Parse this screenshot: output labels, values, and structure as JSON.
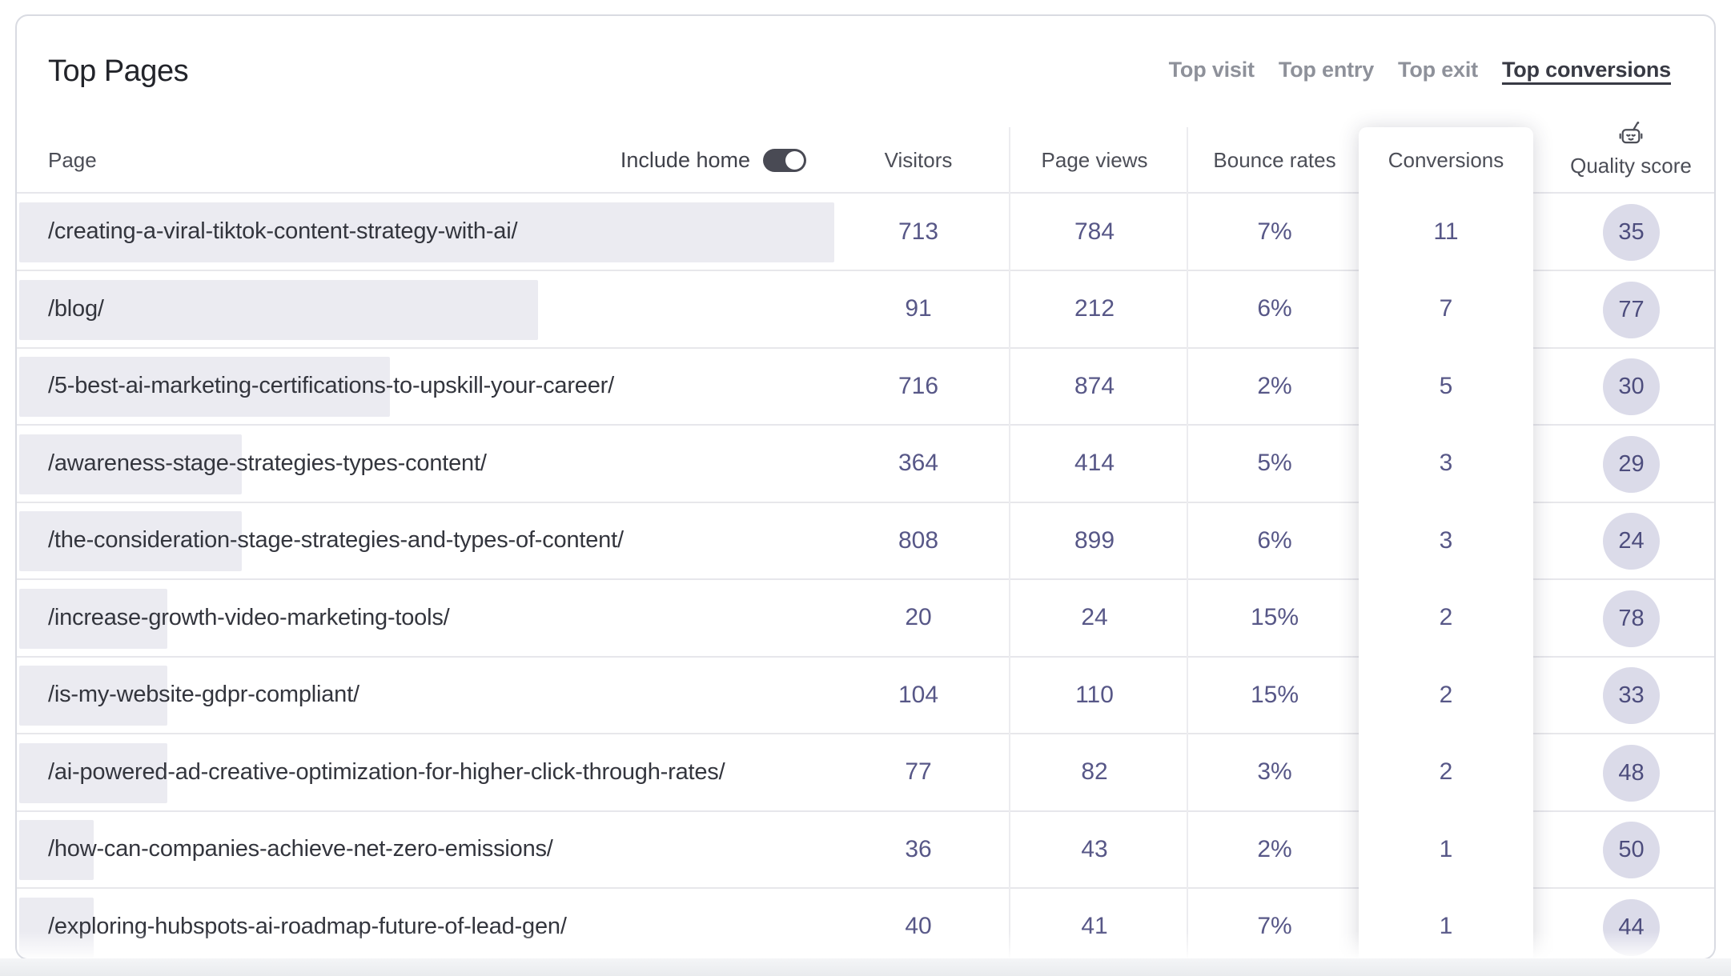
{
  "card": {
    "title": "Top Pages"
  },
  "tabs": [
    {
      "label": "Top visit",
      "active": false
    },
    {
      "label": "Top entry",
      "active": false
    },
    {
      "label": "Top exit",
      "active": false
    },
    {
      "label": "Top conversions",
      "active": true
    }
  ],
  "controls": {
    "include_home_label": "Include home",
    "include_home_state": "on"
  },
  "icons": {
    "quality_score": "robot-icon",
    "toggle": "toggle-on-icon"
  },
  "colors": {
    "accent_number": "#575787",
    "badge_bg": "#dbdbe9",
    "bar_fill": "#ebebf1",
    "toggle_on": "#494a54",
    "card_border": "#d9dbe2"
  },
  "table": {
    "columns": {
      "page": "Page",
      "visitors": "Visitors",
      "page_views": "Page views",
      "bounce_rates": "Bounce rates",
      "conversions": "Conversions",
      "quality_score": "Quality score"
    },
    "rows": [
      {
        "page": "/creating-a-viral-tiktok-content-strategy-with-ai/",
        "visitors": "713",
        "page_views": "784",
        "bounce_rate": "7%",
        "conversions": "11",
        "quality_score": "35"
      },
      {
        "page": "/blog/",
        "visitors": "91",
        "page_views": "212",
        "bounce_rate": "6%",
        "conversions": "7",
        "quality_score": "77"
      },
      {
        "page": "/5-best-ai-marketing-certifications-to-upskill-your-career/",
        "visitors": "716",
        "page_views": "874",
        "bounce_rate": "2%",
        "conversions": "5",
        "quality_score": "30"
      },
      {
        "page": "/awareness-stage-strategies-types-content/",
        "visitors": "364",
        "page_views": "414",
        "bounce_rate": "5%",
        "conversions": "3",
        "quality_score": "29"
      },
      {
        "page": "/the-consideration-stage-strategies-and-types-of-content/",
        "visitors": "808",
        "page_views": "899",
        "bounce_rate": "6%",
        "conversions": "3",
        "quality_score": "24"
      },
      {
        "page": "/increase-growth-video-marketing-tools/",
        "visitors": "20",
        "page_views": "24",
        "bounce_rate": "15%",
        "conversions": "2",
        "quality_score": "78"
      },
      {
        "page": "/is-my-website-gdpr-compliant/",
        "visitors": "104",
        "page_views": "110",
        "bounce_rate": "15%",
        "conversions": "2",
        "quality_score": "33"
      },
      {
        "page": "/ai-powered-ad-creative-optimization-for-higher-click-through-rates/",
        "visitors": "77",
        "page_views": "82",
        "bounce_rate": "3%",
        "conversions": "2",
        "quality_score": "48"
      },
      {
        "page": "/how-can-companies-achieve-net-zero-emissions/",
        "visitors": "36",
        "page_views": "43",
        "bounce_rate": "2%",
        "conversions": "1",
        "quality_score": "50"
      },
      {
        "page": "/exploring-hubspots-ai-roadmap-future-of-lead-gen/",
        "visitors": "40",
        "page_views": "41",
        "bounce_rate": "7%",
        "conversions": "1",
        "quality_score": "44"
      }
    ]
  }
}
